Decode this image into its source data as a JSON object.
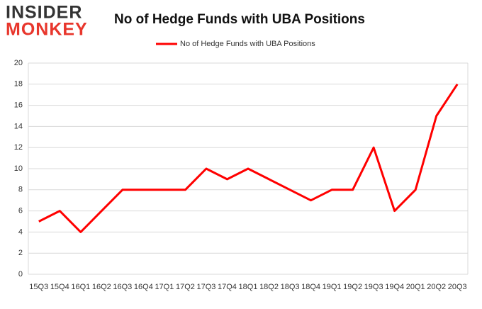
{
  "logo": {
    "line1": "INSIDER",
    "line2": "MONKEY"
  },
  "chart_data": {
    "type": "line",
    "title": "No of Hedge Funds with UBA Positions",
    "categories": [
      "15Q3",
      "15Q4",
      "16Q1",
      "16Q2",
      "16Q3",
      "16Q4",
      "17Q1",
      "17Q2",
      "17Q3",
      "17Q4",
      "18Q1",
      "18Q2",
      "18Q3",
      "18Q4",
      "19Q1",
      "19Q2",
      "19Q3",
      "19Q4",
      "20Q1",
      "20Q2",
      "20Q3"
    ],
    "series": [
      {
        "name": "No of Hedge Funds with UBA Positions",
        "color": "#ff0000",
        "values": [
          5,
          6,
          4,
          6,
          8,
          8,
          8,
          8,
          10,
          9,
          10,
          9,
          8,
          7,
          8,
          8,
          12,
          6,
          8,
          15,
          18
        ]
      }
    ],
    "ylim": [
      0,
      20
    ],
    "yticks": [
      0,
      2,
      4,
      6,
      8,
      10,
      12,
      14,
      16,
      18,
      20
    ],
    "grid": true,
    "legend": "top"
  }
}
